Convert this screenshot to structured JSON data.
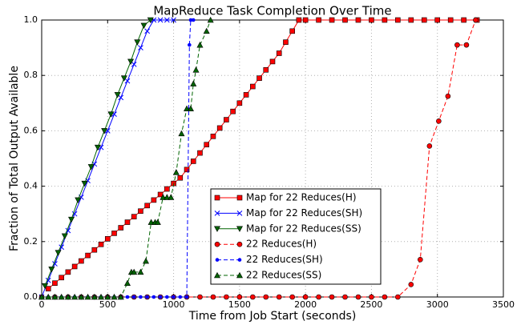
{
  "chart_data": {
    "type": "line",
    "title": "MapReduce Task Completion Over Time",
    "xlabel": "Time from Job Start (seconds)",
    "ylabel": "Fraction of Total Output Available",
    "xlim": [
      0,
      3500
    ],
    "ylim": [
      0,
      1
    ],
    "xticks": [
      0,
      500,
      1000,
      1500,
      2000,
      2500,
      3000,
      3500
    ],
    "yticks": [
      {
        "value": 0,
        "label": "0.0"
      },
      0.2,
      0.4,
      0.6,
      0.8,
      {
        "value": 1,
        "label": "1.0"
      }
    ],
    "grid": true,
    "legend": "lower center",
    "series": [
      {
        "name": "Map for 22 Reduces(H)",
        "color": "#ff0000",
        "marker": "square",
        "linestyle": "solid",
        "x": [
          50,
          100,
          150,
          200,
          250,
          300,
          350,
          400,
          450,
          500,
          550,
          600,
          650,
          700,
          750,
          800,
          850,
          900,
          950,
          1000,
          1050,
          1100,
          1150,
          1200,
          1250,
          1300,
          1350,
          1400,
          1450,
          1500,
          1550,
          1600,
          1650,
          1700,
          1750,
          1800,
          1850,
          1900,
          1950,
          2000,
          2100,
          2200,
          2300,
          2400,
          2500,
          2600,
          2700,
          2800,
          2900,
          3000,
          3100,
          3200,
          3300
        ],
        "values": [
          0.03,
          0.05,
          0.07,
          0.09,
          0.11,
          0.13,
          0.15,
          0.17,
          0.19,
          0.21,
          0.23,
          0.25,
          0.27,
          0.29,
          0.31,
          0.33,
          0.35,
          0.37,
          0.39,
          0.41,
          0.43,
          0.46,
          0.49,
          0.52,
          0.55,
          0.58,
          0.61,
          0.64,
          0.67,
          0.7,
          0.73,
          0.76,
          0.79,
          0.82,
          0.85,
          0.88,
          0.92,
          0.96,
          1,
          1,
          1,
          1,
          1,
          1,
          1,
          1,
          1,
          1,
          1,
          1,
          1,
          1,
          1
        ]
      },
      {
        "name": "Map for 22 Reduces(SH)",
        "color": "#0000ff",
        "marker": "x",
        "linestyle": "solid",
        "x": [
          0,
          50,
          100,
          150,
          200,
          250,
          300,
          350,
          400,
          450,
          500,
          550,
          600,
          650,
          700,
          750,
          800,
          850,
          900,
          950,
          1000
        ],
        "values": [
          0,
          0.06,
          0.12,
          0.18,
          0.24,
          0.3,
          0.36,
          0.42,
          0.48,
          0.54,
          0.6,
          0.66,
          0.72,
          0.78,
          0.84,
          0.9,
          0.96,
          1,
          1,
          1,
          1
        ]
      },
      {
        "name": "Map for 22 Reduces(SS)",
        "color": "#006400",
        "marker": "tri-down",
        "linestyle": "solid",
        "x": [
          25,
          75,
          125,
          175,
          225,
          275,
          325,
          375,
          425,
          475,
          525,
          575,
          625,
          675,
          725,
          775,
          825
        ],
        "values": [
          0.04,
          0.1,
          0.16,
          0.22,
          0.28,
          0.35,
          0.41,
          0.47,
          0.54,
          0.6,
          0.66,
          0.73,
          0.79,
          0.85,
          0.92,
          0.98,
          1
        ]
      },
      {
        "name": "22 Reduces(H)",
        "color": "#ff0000",
        "marker": "circle",
        "linestyle": "dashed",
        "x": [
          0,
          100,
          200,
          300,
          400,
          500,
          600,
          700,
          800,
          900,
          1000,
          1100,
          1200,
          1300,
          1400,
          1500,
          1600,
          1700,
          1800,
          1900,
          2000,
          2100,
          2200,
          2300,
          2400,
          2500,
          2600,
          2700,
          2800,
          2870,
          2940,
          3010,
          3080,
          3150,
          3220,
          3290
        ],
        "values": [
          0,
          0,
          0,
          0,
          0,
          0,
          0,
          0,
          0,
          0,
          0,
          0,
          0,
          0,
          0,
          0,
          0,
          0,
          0,
          0,
          0,
          0,
          0,
          0,
          0,
          0,
          0,
          0,
          0.045,
          0.135,
          0.545,
          0.635,
          0.725,
          0.91,
          0.91,
          1
        ]
      },
      {
        "name": "22 Reduces(SH)",
        "color": "#0000ff",
        "marker": "dot",
        "linestyle": "dashed",
        "x": [
          0,
          50,
          100,
          150,
          200,
          250,
          300,
          350,
          400,
          450,
          500,
          550,
          600,
          650,
          700,
          750,
          800,
          850,
          900,
          950,
          1000,
          1050,
          1100,
          1120,
          1130,
          1150
        ],
        "values": [
          0,
          0,
          0,
          0,
          0,
          0,
          0,
          0,
          0,
          0,
          0,
          0,
          0,
          0,
          0,
          0,
          0,
          0,
          0,
          0,
          0,
          0,
          0,
          0.91,
          1,
          1
        ]
      },
      {
        "name": "22 Reduces(SS)",
        "color": "#006400",
        "marker": "tri-up",
        "linestyle": "dashed",
        "x": [
          0,
          50,
          100,
          150,
          200,
          250,
          300,
          350,
          400,
          450,
          500,
          550,
          600,
          650,
          680,
          700,
          750,
          790,
          830,
          860,
          880,
          920,
          950,
          980,
          1020,
          1060,
          1100,
          1130,
          1150,
          1170,
          1200,
          1250,
          1280
        ],
        "values": [
          0,
          0,
          0,
          0,
          0,
          0,
          0,
          0,
          0,
          0,
          0,
          0,
          0,
          0.05,
          0.09,
          0.09,
          0.09,
          0.13,
          0.27,
          0.27,
          0.27,
          0.36,
          0.36,
          0.36,
          0.45,
          0.59,
          0.68,
          0.68,
          0.77,
          0.82,
          0.91,
          0.96,
          1
        ]
      }
    ]
  }
}
